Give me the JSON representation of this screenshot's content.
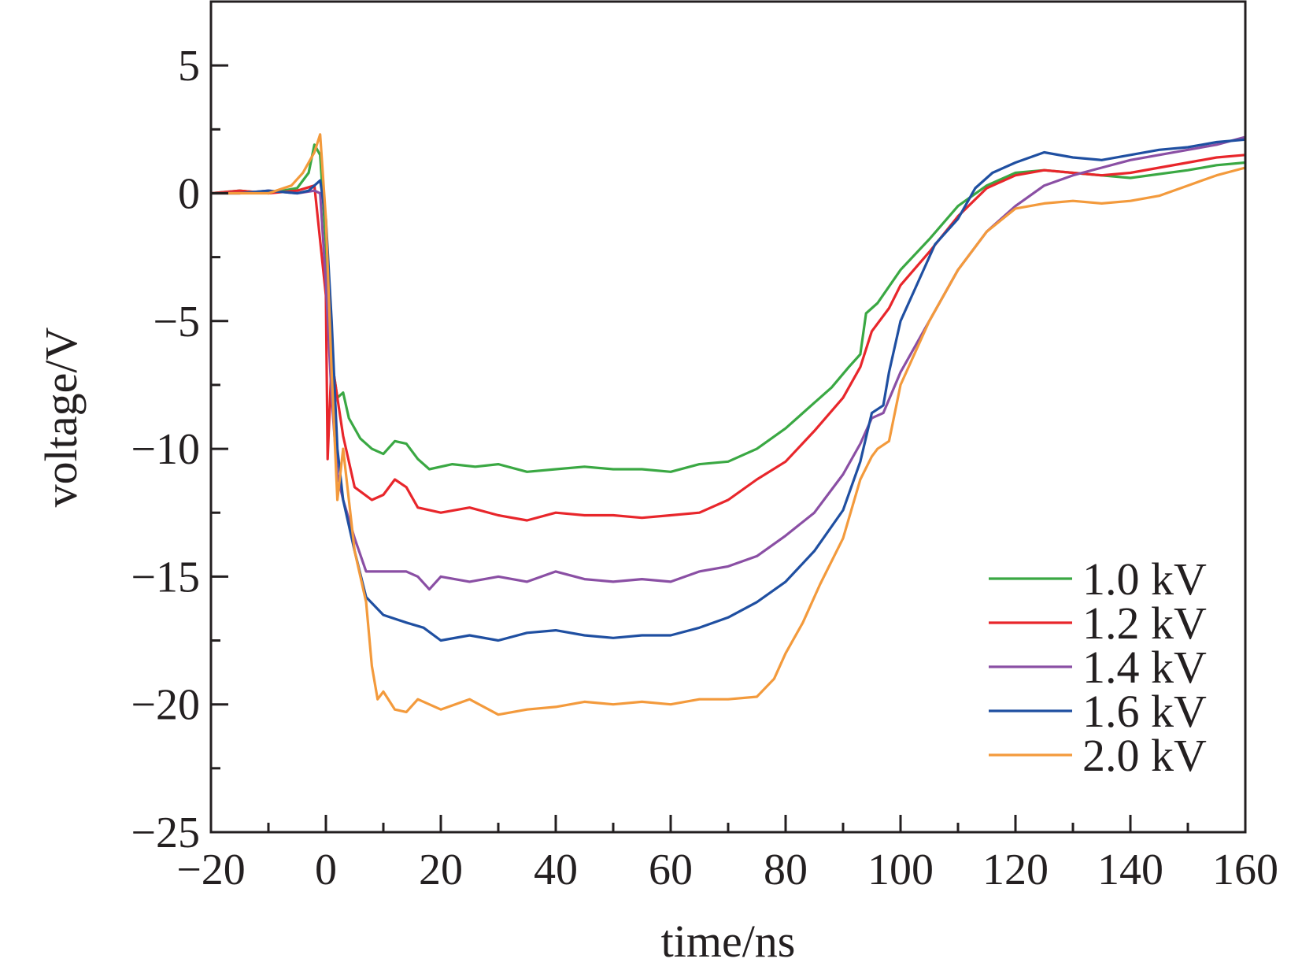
{
  "chart_data": {
    "type": "line",
    "xlabel": "time/ns",
    "ylabel": "voltage/V",
    "xlim": [
      -20,
      160
    ],
    "ylim": [
      -25,
      7.5
    ],
    "xticks": [
      -20,
      0,
      20,
      40,
      60,
      80,
      100,
      120,
      140,
      160
    ],
    "xtick_labels": [
      "−20",
      "0",
      "20",
      "40",
      "60",
      "80",
      "100",
      "120",
      "140",
      "160"
    ],
    "yticks": [
      5,
      0,
      -5,
      -10,
      -15,
      -20,
      -25
    ],
    "ytick_labels": [
      "5",
      "0",
      "−5",
      "−10",
      "−15",
      "−20",
      "−25"
    ],
    "grid": false,
    "legend_position": "bottom-right",
    "series": [
      {
        "name": "1.0 kV",
        "color": "#3aa843",
        "points": [
          [
            -20,
            0
          ],
          [
            -15,
            0.1
          ],
          [
            -10,
            0
          ],
          [
            -5,
            0.2
          ],
          [
            -3,
            0.8
          ],
          [
            -2,
            1.9
          ],
          [
            -1,
            1.5
          ],
          [
            0,
            -2
          ],
          [
            1,
            -6.5
          ],
          [
            2,
            -8
          ],
          [
            3,
            -7.8
          ],
          [
            4,
            -8.8
          ],
          [
            6,
            -9.6
          ],
          [
            8,
            -10
          ],
          [
            10,
            -10.2
          ],
          [
            12,
            -9.7
          ],
          [
            14,
            -9.8
          ],
          [
            16,
            -10.4
          ],
          [
            18,
            -10.8
          ],
          [
            22,
            -10.6
          ],
          [
            26,
            -10.7
          ],
          [
            30,
            -10.6
          ],
          [
            35,
            -10.9
          ],
          [
            40,
            -10.8
          ],
          [
            45,
            -10.7
          ],
          [
            50,
            -10.8
          ],
          [
            55,
            -10.8
          ],
          [
            60,
            -10.9
          ],
          [
            65,
            -10.6
          ],
          [
            70,
            -10.5
          ],
          [
            75,
            -10.0
          ],
          [
            80,
            -9.2
          ],
          [
            85,
            -8.2
          ],
          [
            88,
            -7.6
          ],
          [
            91,
            -6.8
          ],
          [
            93,
            -6.3
          ],
          [
            94,
            -4.7
          ],
          [
            96,
            -4.3
          ],
          [
            100,
            -3.0
          ],
          [
            105,
            -1.8
          ],
          [
            110,
            -0.5
          ],
          [
            115,
            0.3
          ],
          [
            120,
            0.8
          ],
          [
            125,
            0.9
          ],
          [
            130,
            0.8
          ],
          [
            140,
            0.6
          ],
          [
            150,
            0.9
          ],
          [
            155,
            1.1
          ],
          [
            160,
            1.2
          ]
        ]
      },
      {
        "name": "1.2 kV",
        "color": "#e8262b",
        "points": [
          [
            -20,
            0
          ],
          [
            -15,
            0.1
          ],
          [
            -10,
            0
          ],
          [
            -5,
            0.1
          ],
          [
            -2,
            0.3
          ],
          [
            0,
            -4
          ],
          [
            0.3,
            -10.4
          ],
          [
            1,
            -6.5
          ],
          [
            2,
            -8
          ],
          [
            3,
            -9.5
          ],
          [
            5,
            -11.5
          ],
          [
            8,
            -12
          ],
          [
            10,
            -11.8
          ],
          [
            12,
            -11.2
          ],
          [
            14,
            -11.5
          ],
          [
            16,
            -12.3
          ],
          [
            20,
            -12.5
          ],
          [
            25,
            -12.3
          ],
          [
            30,
            -12.6
          ],
          [
            35,
            -12.8
          ],
          [
            40,
            -12.5
          ],
          [
            45,
            -12.6
          ],
          [
            50,
            -12.6
          ],
          [
            55,
            -12.7
          ],
          [
            60,
            -12.6
          ],
          [
            65,
            -12.5
          ],
          [
            70,
            -12.0
          ],
          [
            75,
            -11.2
          ],
          [
            80,
            -10.5
          ],
          [
            85,
            -9.3
          ],
          [
            90,
            -8.0
          ],
          [
            93,
            -6.8
          ],
          [
            95,
            -5.4
          ],
          [
            98,
            -4.5
          ],
          [
            100,
            -3.6
          ],
          [
            105,
            -2.3
          ],
          [
            110,
            -0.9
          ],
          [
            115,
            0.2
          ],
          [
            120,
            0.7
          ],
          [
            125,
            0.9
          ],
          [
            130,
            0.8
          ],
          [
            135,
            0.7
          ],
          [
            140,
            0.8
          ],
          [
            150,
            1.2
          ],
          [
            155,
            1.4
          ],
          [
            160,
            1.5
          ]
        ]
      },
      {
        "name": "1.4 kV",
        "color": "#8a4fa4",
        "points": [
          [
            -20,
            0
          ],
          [
            -15,
            0
          ],
          [
            -10,
            0.1
          ],
          [
            -5,
            0
          ],
          [
            -2,
            0.1
          ],
          [
            -1,
            0
          ],
          [
            0,
            -3.5
          ],
          [
            1,
            -8
          ],
          [
            2,
            -11
          ],
          [
            3,
            -12
          ],
          [
            5,
            -13.5
          ],
          [
            7,
            -14.8
          ],
          [
            10,
            -14.8
          ],
          [
            14,
            -14.8
          ],
          [
            16,
            -15.0
          ],
          [
            18,
            -15.5
          ],
          [
            20,
            -15.0
          ],
          [
            25,
            -15.2
          ],
          [
            30,
            -15.0
          ],
          [
            35,
            -15.2
          ],
          [
            40,
            -14.8
          ],
          [
            45,
            -15.1
          ],
          [
            50,
            -15.2
          ],
          [
            55,
            -15.1
          ],
          [
            60,
            -15.2
          ],
          [
            65,
            -14.8
          ],
          [
            70,
            -14.6
          ],
          [
            75,
            -14.2
          ],
          [
            80,
            -13.4
          ],
          [
            85,
            -12.5
          ],
          [
            90,
            -11.0
          ],
          [
            93,
            -9.8
          ],
          [
            95,
            -8.8
          ],
          [
            97,
            -8.6
          ],
          [
            100,
            -7.0
          ],
          [
            105,
            -5.0
          ],
          [
            110,
            -3.0
          ],
          [
            115,
            -1.5
          ],
          [
            120,
            -0.5
          ],
          [
            125,
            0.3
          ],
          [
            130,
            0.7
          ],
          [
            135,
            1.0
          ],
          [
            140,
            1.3
          ],
          [
            145,
            1.5
          ],
          [
            150,
            1.7
          ],
          [
            155,
            1.9
          ],
          [
            160,
            2.2
          ]
        ]
      },
      {
        "name": "1.6 kV",
        "color": "#1f4fa1",
        "points": [
          [
            -20,
            0
          ],
          [
            -15,
            0
          ],
          [
            -10,
            0.1
          ],
          [
            -5,
            0
          ],
          [
            -3,
            0.1
          ],
          [
            -1,
            0.5
          ],
          [
            0,
            -1
          ],
          [
            1,
            -5
          ],
          [
            2,
            -10
          ],
          [
            3,
            -12
          ],
          [
            5,
            -14
          ],
          [
            7,
            -15.8
          ],
          [
            10,
            -16.5
          ],
          [
            14,
            -16.8
          ],
          [
            17,
            -17.0
          ],
          [
            20,
            -17.5
          ],
          [
            25,
            -17.3
          ],
          [
            30,
            -17.5
          ],
          [
            35,
            -17.2
          ],
          [
            40,
            -17.1
          ],
          [
            45,
            -17.3
          ],
          [
            50,
            -17.4
          ],
          [
            55,
            -17.3
          ],
          [
            60,
            -17.3
          ],
          [
            65,
            -17.0
          ],
          [
            70,
            -16.6
          ],
          [
            75,
            -16.0
          ],
          [
            80,
            -15.2
          ],
          [
            85,
            -14.0
          ],
          [
            90,
            -12.4
          ],
          [
            93,
            -10.5
          ],
          [
            95,
            -8.6
          ],
          [
            97,
            -8.3
          ],
          [
            98,
            -7.0
          ],
          [
            100,
            -5.0
          ],
          [
            103,
            -3.5
          ],
          [
            106,
            -2.0
          ],
          [
            110,
            -1.0
          ],
          [
            113,
            0.2
          ],
          [
            116,
            0.8
          ],
          [
            120,
            1.2
          ],
          [
            125,
            1.6
          ],
          [
            130,
            1.4
          ],
          [
            135,
            1.3
          ],
          [
            140,
            1.5
          ],
          [
            145,
            1.7
          ],
          [
            150,
            1.8
          ],
          [
            155,
            2.0
          ],
          [
            160,
            2.1
          ]
        ]
      },
      {
        "name": "2.0 kV",
        "color": "#f39a3c",
        "points": [
          [
            -20,
            0
          ],
          [
            -15,
            0
          ],
          [
            -10,
            0
          ],
          [
            -6,
            0.3
          ],
          [
            -4,
            0.8
          ],
          [
            -2,
            1.6
          ],
          [
            -1,
            2.3
          ],
          [
            0,
            -1
          ],
          [
            1,
            -7
          ],
          [
            2,
            -12
          ],
          [
            3,
            -10
          ],
          [
            4,
            -12
          ],
          [
            5,
            -14
          ],
          [
            7,
            -16
          ],
          [
            8,
            -18.5
          ],
          [
            9,
            -19.8
          ],
          [
            10,
            -19.5
          ],
          [
            12,
            -20.2
          ],
          [
            14,
            -20.3
          ],
          [
            16,
            -19.8
          ],
          [
            20,
            -20.2
          ],
          [
            25,
            -19.8
          ],
          [
            30,
            -20.4
          ],
          [
            35,
            -20.2
          ],
          [
            40,
            -20.1
          ],
          [
            45,
            -19.9
          ],
          [
            50,
            -20.0
          ],
          [
            55,
            -19.9
          ],
          [
            60,
            -20.0
          ],
          [
            65,
            -19.8
          ],
          [
            70,
            -19.8
          ],
          [
            75,
            -19.7
          ],
          [
            78,
            -19.0
          ],
          [
            80,
            -18.0
          ],
          [
            83,
            -16.8
          ],
          [
            86,
            -15.3
          ],
          [
            90,
            -13.5
          ],
          [
            93,
            -11.2
          ],
          [
            95,
            -10.3
          ],
          [
            96,
            -10.0
          ],
          [
            98,
            -9.7
          ],
          [
            100,
            -7.5
          ],
          [
            105,
            -5.0
          ],
          [
            110,
            -3.0
          ],
          [
            115,
            -1.5
          ],
          [
            120,
            -0.6
          ],
          [
            125,
            -0.4
          ],
          [
            130,
            -0.3
          ],
          [
            135,
            -0.4
          ],
          [
            140,
            -0.3
          ],
          [
            145,
            -0.1
          ],
          [
            150,
            0.3
          ],
          [
            155,
            0.7
          ],
          [
            160,
            1.0
          ]
        ]
      }
    ]
  }
}
